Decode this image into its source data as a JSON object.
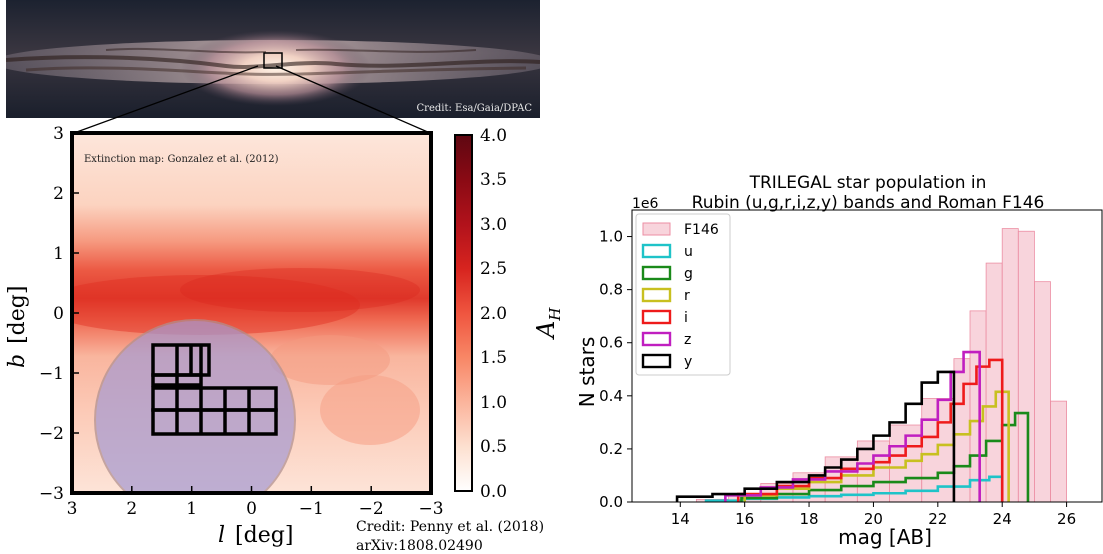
{
  "top_image": {
    "credit": "Credit: Esa/Gaia/DPAC"
  },
  "map_panel": {
    "annotation": "Extinction map: Gonzalez et al. (2012)",
    "xlabel_italic": "l",
    "xlabel_unit": "[deg]",
    "ylabel_italic": "b",
    "ylabel_unit": "[deg]",
    "x_ticks": [
      "3",
      "2",
      "1",
      "0",
      "−1",
      "−2",
      "−3"
    ],
    "y_ticks": [
      "3",
      "2",
      "1",
      "0",
      "−1",
      "−2",
      "−3"
    ],
    "colorbar_label": "A",
    "colorbar_label_sub": "H",
    "colorbar_ticks": [
      "4.0",
      "3.5",
      "3.0",
      "2.5",
      "2.0",
      "1.5",
      "1.0",
      "0.5",
      "0.0"
    ],
    "colorbar_colors": [
      "#ffffff",
      "#fde0d0",
      "#fbb49c",
      "#f88766",
      "#ef553f",
      "#d7241f",
      "#b1121b",
      "#8a0a14",
      "#5e0711"
    ],
    "credit_line1": "Credit: Penny et al. (2018)",
    "credit_line2": "arXiv:1808.02490"
  },
  "chart_data": {
    "type": "bar",
    "title": "TRILEGAL star population in",
    "subtitle": "Rubin (u,g,r,i,z,y) bands and Roman F146",
    "xlabel": "mag [AB]",
    "ylabel": "N stars",
    "y_offset_label": "1e6",
    "xlim": [
      12.5,
      27.1
    ],
    "ylim": [
      0,
      1.1
    ],
    "x_ticks": [
      14,
      16,
      18,
      20,
      22,
      24,
      26
    ],
    "y_ticks": [
      0.0,
      0.2,
      0.4,
      0.6,
      0.8,
      1.0
    ],
    "legend_position": "upper-left",
    "series": [
      {
        "name": "F146",
        "style": "filled",
        "color": "#f4b8c4",
        "bins": [
          [
            14.5,
            15.5,
            0.01
          ],
          [
            15.5,
            16.5,
            0.03
          ],
          [
            16.5,
            17.5,
            0.07
          ],
          [
            17.5,
            18.5,
            0.11
          ],
          [
            18.5,
            19.5,
            0.17
          ],
          [
            19.5,
            20.5,
            0.23
          ],
          [
            20.5,
            21.5,
            0.29
          ],
          [
            21.5,
            22.5,
            0.39
          ],
          [
            22.5,
            23.0,
            0.54
          ],
          [
            23.0,
            23.5,
            0.72
          ],
          [
            23.5,
            24.0,
            0.9
          ],
          [
            24.0,
            24.5,
            1.03
          ],
          [
            24.5,
            25.0,
            1.02
          ],
          [
            25.0,
            25.5,
            0.83
          ],
          [
            25.5,
            26.0,
            0.38
          ]
        ]
      },
      {
        "name": "u",
        "style": "step",
        "color": "#1fc3c8",
        "edges": [
          14.8,
          16.0,
          17.0,
          18.0,
          19.0,
          20.0,
          21.0,
          22.0,
          23.0,
          23.6,
          24.0
        ],
        "values": [
          0.005,
          0.012,
          0.017,
          0.022,
          0.027,
          0.033,
          0.042,
          0.058,
          0.082,
          0.095
        ]
      },
      {
        "name": "g",
        "style": "step",
        "color": "#1a8a1a",
        "edges": [
          15.9,
          17.0,
          18.0,
          19.0,
          20.0,
          21.0,
          22.0,
          22.5,
          23.0,
          23.5,
          24.0,
          24.4,
          24.8
        ],
        "values": [
          0.015,
          0.03,
          0.045,
          0.06,
          0.075,
          0.09,
          0.11,
          0.135,
          0.175,
          0.23,
          0.29,
          0.335
        ]
      },
      {
        "name": "r",
        "style": "step",
        "color": "#c8c020",
        "edges": [
          16.0,
          17.0,
          18.0,
          19.0,
          20.0,
          21.0,
          21.5,
          22.0,
          22.5,
          23.0,
          23.4,
          23.8,
          24.2
        ],
        "values": [
          0.025,
          0.05,
          0.075,
          0.1,
          0.13,
          0.155,
          0.18,
          0.215,
          0.255,
          0.305,
          0.36,
          0.415
        ]
      },
      {
        "name": "i",
        "style": "step",
        "color": "#ee1b1b",
        "edges": [
          15.8,
          17.0,
          18.0,
          19.0,
          20.0,
          20.5,
          21.0,
          21.5,
          22.0,
          22.4,
          22.8,
          23.2,
          23.6,
          24.0
        ],
        "values": [
          0.03,
          0.06,
          0.09,
          0.125,
          0.15,
          0.175,
          0.21,
          0.245,
          0.3,
          0.37,
          0.445,
          0.51,
          0.535
        ]
      },
      {
        "name": "z",
        "style": "step",
        "color": "#c01fc0",
        "edges": [
          15.4,
          16.5,
          17.5,
          18.5,
          19.5,
          20.0,
          20.5,
          21.0,
          21.5,
          22.0,
          22.4,
          22.8,
          23.3
        ],
        "values": [
          0.025,
          0.055,
          0.085,
          0.115,
          0.145,
          0.175,
          0.21,
          0.25,
          0.31,
          0.385,
          0.49,
          0.565
        ]
      },
      {
        "name": "y",
        "style": "step",
        "color": "#000000",
        "edges": [
          13.9,
          15.0,
          16.0,
          17.0,
          18.0,
          18.5,
          19.0,
          19.5,
          20.0,
          20.5,
          21.0,
          21.5,
          22.0,
          22.5
        ],
        "values": [
          0.02,
          0.03,
          0.05,
          0.075,
          0.1,
          0.13,
          0.16,
          0.2,
          0.25,
          0.3,
          0.37,
          0.45,
          0.49
        ]
      }
    ]
  }
}
